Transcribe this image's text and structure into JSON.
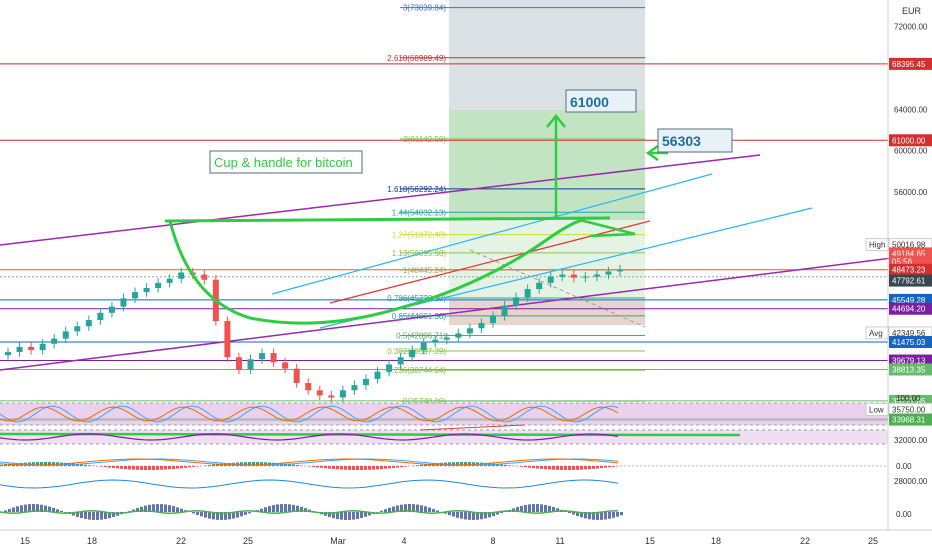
{
  "currency": "EUR",
  "annotations": {
    "title_box": "Cup & handle for bitcoin",
    "target1": "61000",
    "target2": "56303"
  },
  "fib_levels": [
    {
      "ratio": "3",
      "price": "73839.84",
      "color": "#3f74c8"
    },
    {
      "ratio": "2.618",
      "price": "68989.49",
      "color": "#d32f2f"
    },
    {
      "ratio": "2",
      "price": "61142.59",
      "color": "#8bc34a"
    },
    {
      "ratio": "1.618",
      "price": "56292.24",
      "color": "#0b3d91"
    },
    {
      "ratio": "1.44",
      "price": "54032.13",
      "color": "#26a69a"
    },
    {
      "ratio": "1.27",
      "price": "51872.48",
      "color": "#cddc39"
    },
    {
      "ratio": "1.13",
      "price": "50095.98",
      "color": "#8bc34a"
    },
    {
      "ratio": "1",
      "price": "48445.24",
      "color": "#8bc34a"
    },
    {
      "ratio": "0.786",
      "price": "45728.13",
      "color": "#26a69a"
    },
    {
      "ratio": "0.65",
      "price": "44001.30",
      "color": "#26a69a"
    },
    {
      "ratio": "0.5",
      "price": "42096.71",
      "color": "#4caf50"
    },
    {
      "ratio": "0.382",
      "price": "40597.39",
      "color": "#8bc34a"
    },
    {
      "ratio": "0.236",
      "price": "38744.64",
      "color": "#8bc34a"
    },
    {
      "ratio": "0",
      "price": "35748.09",
      "color": "#8bc34a"
    }
  ],
  "price_axis": {
    "ticks": [
      "72000.00",
      "64000.00",
      "60000.00",
      "56000.00",
      "32000.00",
      "28000.00"
    ],
    "tags": [
      {
        "label": "",
        "value": "68395.45",
        "bg": "#d32f2f",
        "fg": "#ffffff"
      },
      {
        "label": "",
        "value": "61000.00",
        "bg": "#d32f2f",
        "fg": "#ffffff"
      },
      {
        "label": "High",
        "value": "50016.98",
        "bg": "#ffffff",
        "fg": "#333333"
      },
      {
        "label": "",
        "value": "49184.65",
        "bg": "#ef5350",
        "fg": "#ffffff"
      },
      {
        "label": "",
        "value": "05:56",
        "bg": "#ef5350",
        "fg": "#ffffff"
      },
      {
        "label": "",
        "value": "48473.23",
        "bg": "#d32f2f",
        "fg": "#ffffff"
      },
      {
        "label": "",
        "value": "47792.61",
        "bg": "#37474f",
        "fg": "#ffffff"
      },
      {
        "label": "",
        "value": "45549.28",
        "bg": "#1565c0",
        "fg": "#ffffff"
      },
      {
        "label": "",
        "value": "44694.20",
        "bg": "#7b1fa2",
        "fg": "#ffffff"
      },
      {
        "label": "Avg",
        "value": "42349.56",
        "bg": "#ffffff",
        "fg": "#333333"
      },
      {
        "label": "",
        "value": "41475.03",
        "bg": "#1565c0",
        "fg": "#ffffff"
      },
      {
        "label": "",
        "value": "39679.13",
        "bg": "#7b1fa2",
        "fg": "#ffffff"
      },
      {
        "label": "",
        "value": "38813.35",
        "bg": "#66bb6a",
        "fg": "#ffffff"
      },
      {
        "label": "",
        "value": "35771.85",
        "bg": "#66bb6a",
        "fg": "#ffffff"
      },
      {
        "label": "Low",
        "value": "35750.00",
        "bg": "#ffffff",
        "fg": "#333333"
      },
      {
        "label": "",
        "value": "33968.31",
        "bg": "#4caf50",
        "fg": "#ffffff"
      }
    ],
    "indicator_ticks": [
      "100.00",
      "0.00",
      "0.00"
    ]
  },
  "time_axis": [
    "15",
    "18",
    "22",
    "25",
    "Mar",
    "4",
    "8",
    "11",
    "15",
    "18",
    "22",
    "25"
  ],
  "chart_data": {
    "type": "candlestick",
    "title": "Cup & handle for bitcoin",
    "currency": "EUR",
    "y_axis_ticks": [
      72000,
      64000,
      60000,
      56000,
      32000,
      28000
    ],
    "x_axis_labels": [
      "15",
      "18",
      "22",
      "25",
      "Mar",
      "4",
      "8",
      "11",
      "15",
      "18",
      "22",
      "25"
    ],
    "summary": {
      "high": 50016.98,
      "avg": 42349.56,
      "low": 35750.0,
      "last": 48473.23
    },
    "targets": [
      61000,
      56303
    ],
    "horizontal_levels": [
      68395.45,
      61000.0,
      48473.23,
      47792.61,
      45549.28,
      44694.2,
      41475.03,
      39679.13,
      38813.35,
      35771.85,
      33968.31
    ],
    "close_series_approx": [
      40500,
      41000,
      40700,
      41300,
      41800,
      42500,
      43000,
      43600,
      44300,
      44900,
      45700,
      46300,
      46700,
      47200,
      47600,
      48200,
      48000,
      47500,
      43500,
      40000,
      38800,
      39800,
      40400,
      39500,
      38900,
      37500,
      36800,
      36300,
      36100,
      36800,
      37300,
      37900,
      38600,
      39300,
      40000,
      40700,
      41400,
      41700,
      41900,
      42300,
      42800,
      43300,
      44000,
      45000,
      45800,
      46600,
      47200,
      47800,
      48000,
      47700,
      47800,
      48000,
      48300,
      48473
    ]
  }
}
